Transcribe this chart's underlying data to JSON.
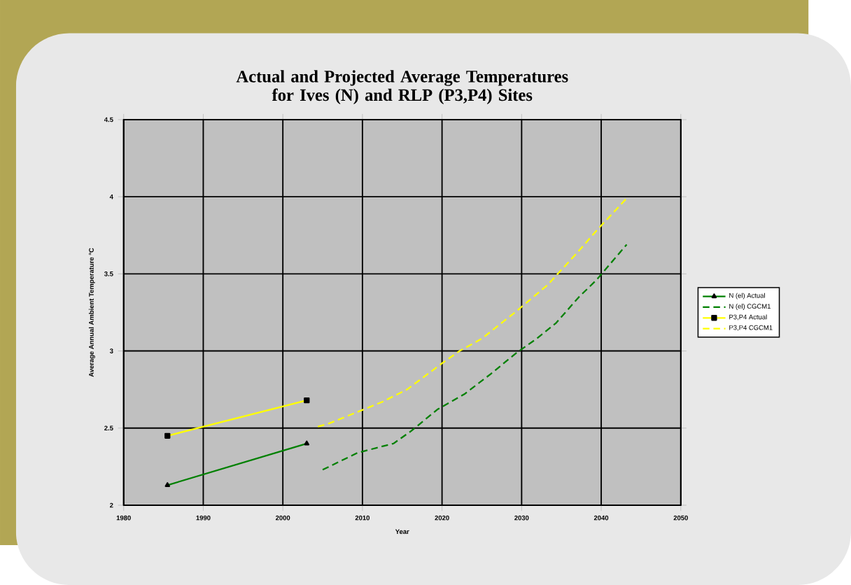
{
  "chart_data": {
    "type": "line",
    "title": "Actual and Projected  Average Temperatures for Ives (N) and RLP (P3,P4) Sites",
    "xlabel": "Year",
    "ylabel": "Average Annual Ambient Temperature °C",
    "xlim": [
      1980,
      2050
    ],
    "xticks": [
      1980,
      1990,
      2000,
      2010,
      2020,
      2030,
      2040,
      2050
    ],
    "ylim": [
      2,
      4.5
    ],
    "yticks": [
      2,
      2.5,
      3,
      3.5,
      4,
      4.5
    ],
    "grid": true,
    "legend": "right",
    "series": [
      {
        "name": "N (el) Actual",
        "color": "#008000",
        "marker": "triangle",
        "line_style": "solid",
        "x": [
          1985.5,
          2003
        ],
        "values": [
          2.13,
          2.4
        ]
      },
      {
        "name": "N (el) CGCM1",
        "color": "#008000",
        "marker": "none",
        "line_style": "dashed",
        "x": [
          2005,
          2009.4,
          2013.9,
          2016.1,
          2019.4,
          2022.8,
          2026.1,
          2029.4,
          2031.9,
          2034.3,
          2037.2,
          2039.4,
          2043.2
        ],
        "values": [
          2.23,
          2.34,
          2.4,
          2.48,
          2.62,
          2.72,
          2.85,
          2.99,
          3.08,
          3.18,
          3.35,
          3.46,
          3.69
        ]
      },
      {
        "name": "P3,P4 Actual",
        "color": "#ffff00",
        "marker": "square",
        "line_style": "solid",
        "x": [
          1985.5,
          2003
        ],
        "values": [
          2.45,
          2.68
        ]
      },
      {
        "name": "P3,P4 CGCM1",
        "color": "#ffff00",
        "marker": "none",
        "line_style": "dashed",
        "x": [
          2004.4,
          2005.8,
          2012.5,
          2015.6,
          2020,
          2022.2,
          2025,
          2029.4,
          2033.3,
          2037.2,
          2039.4,
          2043.2
        ],
        "values": [
          2.51,
          2.53,
          2.67,
          2.75,
          2.92,
          3.0,
          3.08,
          3.26,
          3.43,
          3.65,
          3.78,
          3.99
        ]
      }
    ]
  }
}
